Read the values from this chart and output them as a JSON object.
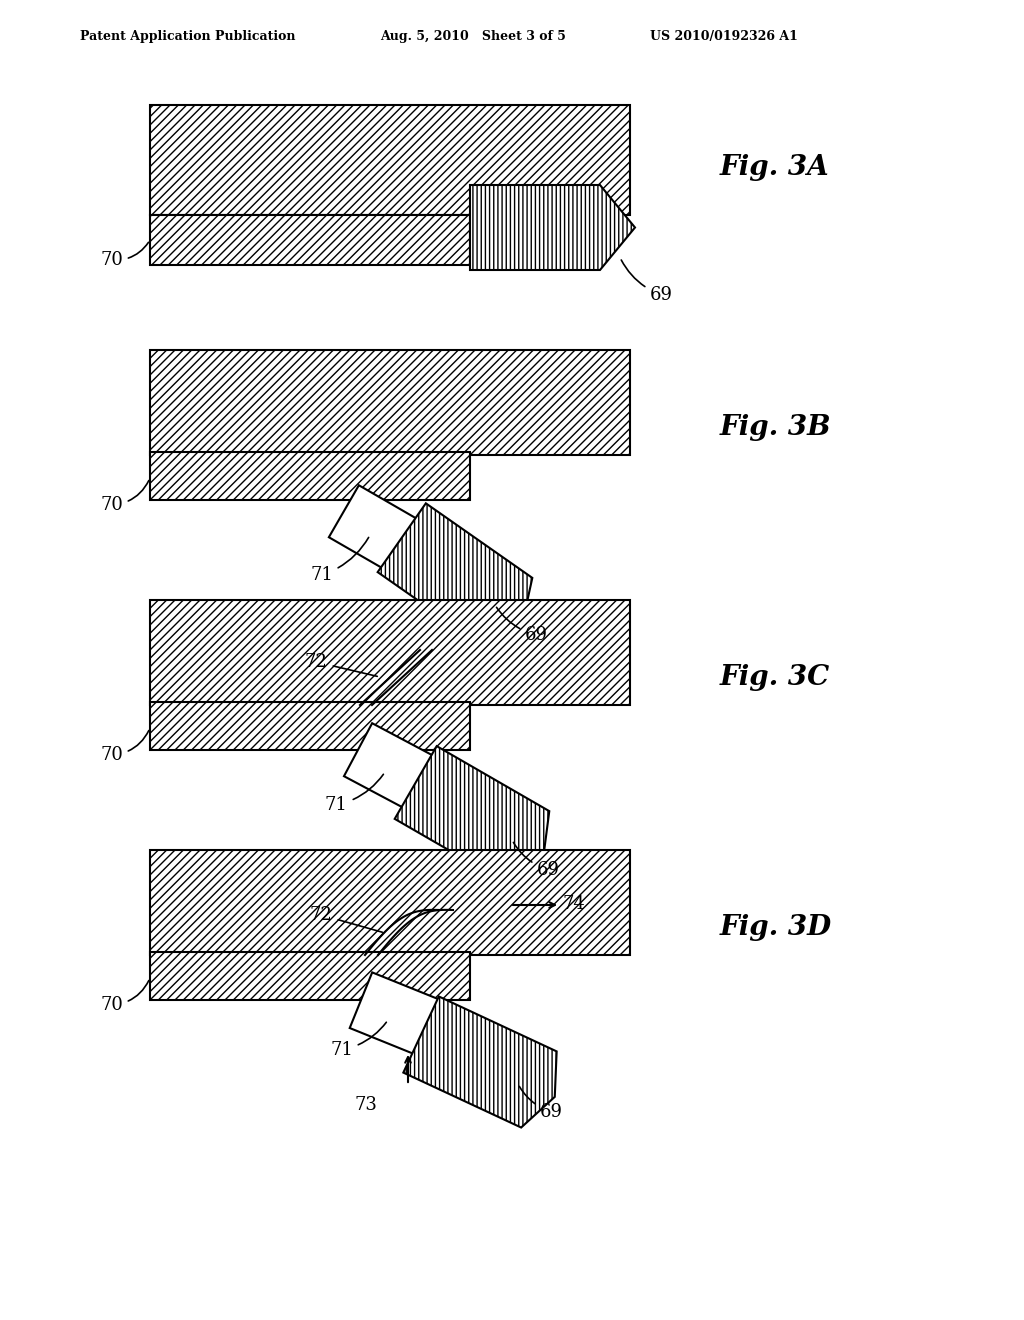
{
  "header_left": "Patent Application Publication",
  "header_mid": "Aug. 5, 2010   Sheet 3 of 5",
  "header_right": "US 2010/0192326 A1",
  "fig_labels": [
    "Fig. 3A",
    "Fig. 3B",
    "Fig. 3C",
    "Fig. 3D"
  ],
  "bg_color": "#ffffff",
  "hatch_color": "#000000",
  "line_color": "#000000",
  "label_fontsize": 13,
  "fig_label_fontsize": 20
}
